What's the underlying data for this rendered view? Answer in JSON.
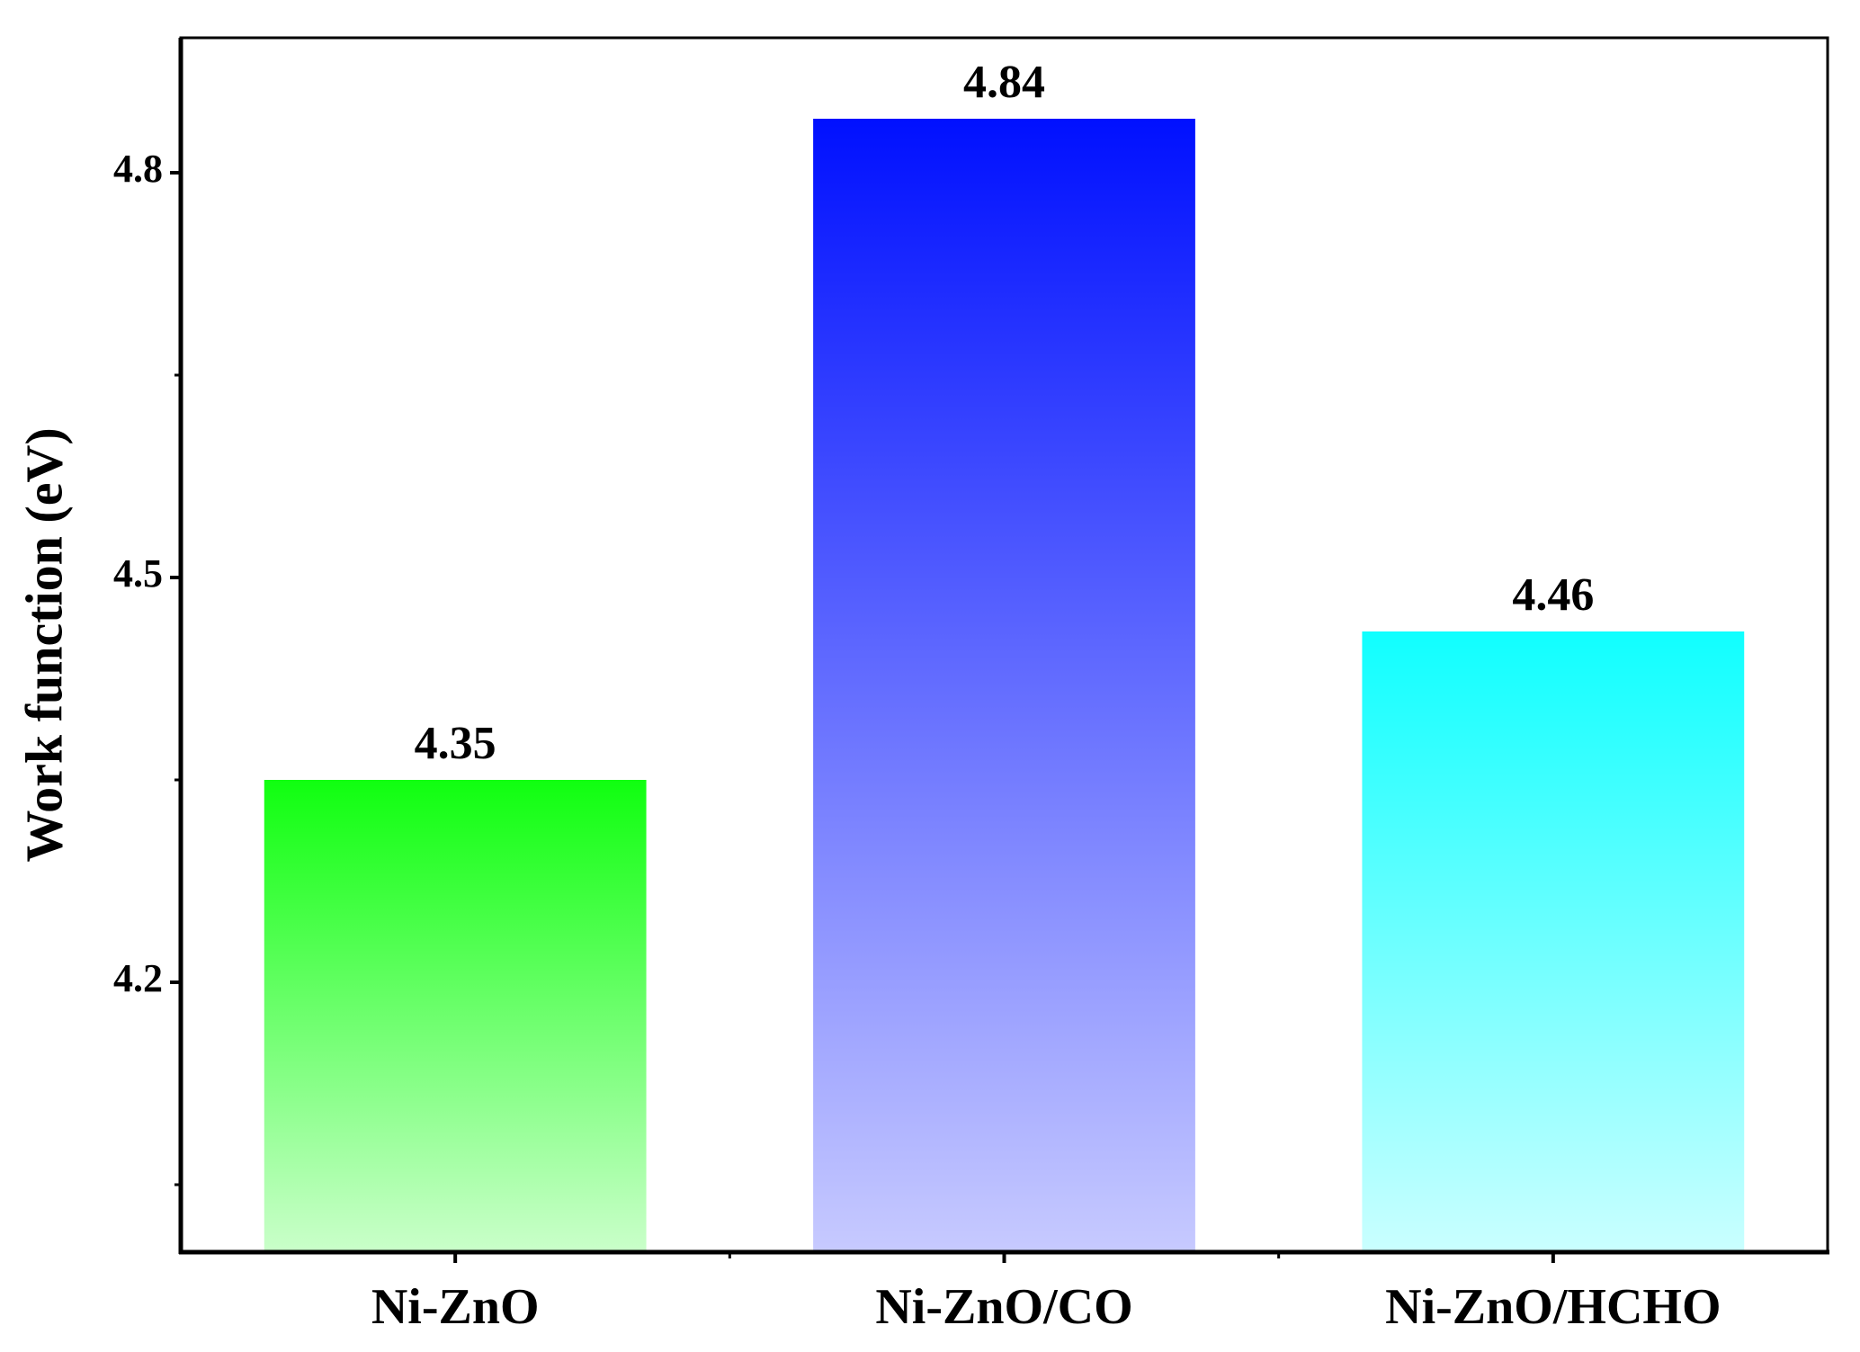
{
  "chart_data": {
    "type": "bar",
    "y_label": "Work function (eV)",
    "categories": [
      "Ni-ZnO",
      "Ni-ZnO/CO",
      "Ni-ZnO/HCHO"
    ],
    "values": [
      4.35,
      4.84,
      4.46
    ],
    "colors": [
      "#10ff10",
      "#0010ff",
      "#10ffff"
    ],
    "ylim": [
      4.0,
      4.9
    ],
    "yticks": [
      4.2,
      4.5,
      4.8
    ],
    "minor_yticks": [
      4.05,
      4.35,
      4.65
    ],
    "grid": false
  }
}
